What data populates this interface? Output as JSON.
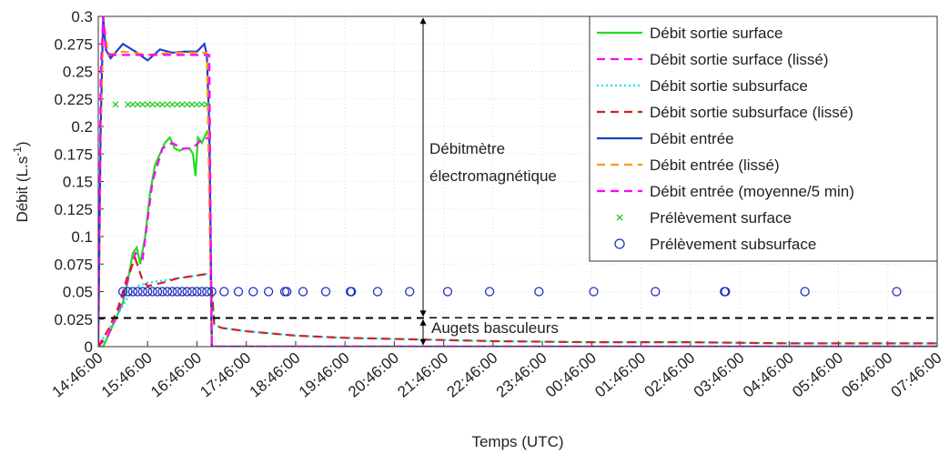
{
  "chart_data": {
    "type": "line",
    "xlabel": "Temps (UTC)",
    "ylabel": {
      "text": "Débit (L.s",
      "sup": "-1",
      "end": ")"
    },
    "xlim": [
      0,
      17
    ],
    "xticks": [
      {
        "value": 0,
        "label": "14:46:00"
      },
      {
        "value": 1,
        "label": "15:46:00"
      },
      {
        "value": 2,
        "label": "16:46:00"
      },
      {
        "value": 3,
        "label": "17:46:00"
      },
      {
        "value": 4,
        "label": "18:46:00"
      },
      {
        "value": 5,
        "label": "19:46:00"
      },
      {
        "value": 6,
        "label": "20:46:00"
      },
      {
        "value": 7,
        "label": "21:46:00"
      },
      {
        "value": 8,
        "label": "22:46:00"
      },
      {
        "value": 9,
        "label": "23:46:00"
      },
      {
        "value": 10,
        "label": "00:46:00"
      },
      {
        "value": 11,
        "label": "01:46:00"
      },
      {
        "value": 12,
        "label": "02:46:00"
      },
      {
        "value": 13,
        "label": "03:46:00"
      },
      {
        "value": 14,
        "label": "04:46:00"
      },
      {
        "value": 15,
        "label": "05:46:00"
      },
      {
        "value": 16,
        "label": "06:46:00"
      },
      {
        "value": 17,
        "label": "07:46:00"
      }
    ],
    "ylim": [
      0,
      0.3
    ],
    "yticks": [
      0,
      0.025,
      0.05,
      0.075,
      0.1,
      0.125,
      0.15,
      0.175,
      0.2,
      0.225,
      0.25,
      0.275,
      0.3
    ],
    "grid": true,
    "legend": "upper right",
    "threshold": 0.026,
    "annotations": {
      "upper": [
        "Débitmètre",
        "électromagnétique"
      ],
      "lower": "Augets basculeurs"
    },
    "series": [
      {
        "name": "Débit sortie surface",
        "color": "#22dd22",
        "style": "solid",
        "x": [
          0,
          0.1,
          0.2,
          0.3,
          0.4,
          0.5,
          0.6,
          0.7,
          0.78,
          0.85,
          0.95,
          1.05,
          1.15,
          1.25,
          1.35,
          1.45,
          1.55,
          1.65,
          1.75,
          1.85,
          1.92,
          1.97,
          2.02,
          2.1,
          2.2,
          2.25,
          2.3,
          17
        ],
        "values": [
          0,
          0,
          0.01,
          0.02,
          0.03,
          0.04,
          0.06,
          0.085,
          0.09,
          0.075,
          0.1,
          0.14,
          0.165,
          0.175,
          0.185,
          0.19,
          0.18,
          0.178,
          0.18,
          0.18,
          0.175,
          0.155,
          0.19,
          0.185,
          0.195,
          0.19,
          0,
          0
        ]
      },
      {
        "name": "Débit sortie surface (lissé)",
        "color": "#ff00ff",
        "style": "dashed",
        "x": [
          0,
          0.2,
          0.4,
          0.6,
          0.75,
          0.9,
          1.1,
          1.3,
          1.5,
          1.7,
          1.9,
          2.1,
          2.25,
          2.3,
          17
        ],
        "values": [
          0,
          0.01,
          0.03,
          0.06,
          0.085,
          0.08,
          0.15,
          0.18,
          0.185,
          0.18,
          0.18,
          0.188,
          0.19,
          0,
          0
        ]
      },
      {
        "name": "Débit sortie subsurface",
        "color": "#00e0ee",
        "style": "dotted",
        "x": [
          0,
          0.2,
          0.4,
          0.6,
          0.8,
          1.0,
          1.3,
          1.6,
          1.9,
          2.2,
          2.28,
          2.35,
          2.5,
          3,
          4,
          5,
          6,
          8,
          10,
          12,
          14,
          17
        ],
        "values": [
          0,
          0.015,
          0.03,
          0.045,
          0.055,
          0.058,
          0.06,
          0.062,
          0.064,
          0.066,
          0.065,
          0.02,
          0.017,
          0.014,
          0.01,
          0.008,
          0.007,
          0.005,
          0.004,
          0.004,
          0.003,
          0.003
        ]
      },
      {
        "name": "Débit sortie subsurface (lissé)",
        "color": "#d42020",
        "style": "dashed",
        "x": [
          0,
          0.2,
          0.4,
          0.6,
          0.75,
          0.9,
          1.0,
          1.3,
          1.6,
          1.9,
          2.2,
          2.28,
          2.35,
          2.5,
          3,
          4,
          5,
          6,
          8,
          10,
          12,
          14,
          17
        ],
        "values": [
          0,
          0.015,
          0.035,
          0.065,
          0.08,
          0.06,
          0.055,
          0.058,
          0.062,
          0.064,
          0.066,
          0.065,
          0.02,
          0.017,
          0.014,
          0.01,
          0.008,
          0.007,
          0.005,
          0.004,
          0.004,
          0.003,
          0.003
        ]
      },
      {
        "name": "Débit entrée",
        "color": "#1f3fcf",
        "style": "solid",
        "x": [
          0,
          0.05,
          0.1,
          0.15,
          0.25,
          0.5,
          0.75,
          1.0,
          1.25,
          1.5,
          1.75,
          2.0,
          2.15,
          2.2,
          2.25,
          2.3,
          17
        ],
        "values": [
          0,
          0.2,
          0.3,
          0.27,
          0.262,
          0.275,
          0.268,
          0.26,
          0.27,
          0.267,
          0.268,
          0.268,
          0.275,
          0.265,
          0.2,
          0,
          0
        ]
      },
      {
        "name": "Débit entrée (lissé)",
        "color": "#ff9900",
        "style": "dashed",
        "x": [
          0,
          0.05,
          0.1,
          0.2,
          0.5,
          1,
          1.5,
          2,
          2.2,
          2.3,
          17
        ],
        "values": [
          0,
          0.2,
          0.3,
          0.265,
          0.268,
          0.265,
          0.267,
          0.267,
          0.267,
          0,
          0
        ]
      },
      {
        "name": "Débit entrée (moyenne/5 min)",
        "color": "#ff00ff",
        "style": "dashed",
        "x": [
          0,
          0.05,
          0.1,
          0.15,
          0.25,
          2.25,
          2.3,
          17
        ],
        "values": [
          0,
          0.25,
          0.3,
          0.27,
          0.265,
          0.265,
          0,
          0
        ]
      },
      {
        "name": "Prélèvement surface",
        "color": "#22cc22",
        "style": "none",
        "marker": "x",
        "x": [
          0.35,
          0.6,
          0.7,
          0.8,
          0.9,
          1.0,
          1.1,
          1.2,
          1.3,
          1.4,
          1.5,
          1.6,
          1.7,
          1.8,
          1.9,
          2.0,
          2.1,
          2.2
        ],
        "values": [
          0.22,
          0.22,
          0.22,
          0.22,
          0.22,
          0.22,
          0.22,
          0.22,
          0.22,
          0.22,
          0.22,
          0.22,
          0.22,
          0.22,
          0.22,
          0.22,
          0.22,
          0.22
        ]
      },
      {
        "name": "Prélèvement subsurface",
        "color": "#2030c0",
        "style": "none",
        "marker": "o",
        "x": [
          0.5,
          0.6,
          0.7,
          0.8,
          0.9,
          1.0,
          1.1,
          1.2,
          1.3,
          1.4,
          1.5,
          1.6,
          1.7,
          1.8,
          1.9,
          2.0,
          2.1,
          2.2,
          2.3,
          2.55,
          2.84,
          3.14,
          3.45,
          3.78,
          3.82,
          4.15,
          4.61,
          5.11,
          5.13,
          5.66,
          6.31,
          7.08,
          7.93,
          8.93,
          10.04,
          11.29,
          12.69,
          12.71,
          14.32,
          16.18
        ],
        "values": [
          0.05,
          0.05,
          0.05,
          0.05,
          0.05,
          0.05,
          0.05,
          0.05,
          0.05,
          0.05,
          0.05,
          0.05,
          0.05,
          0.05,
          0.05,
          0.05,
          0.05,
          0.05,
          0.05,
          0.05,
          0.05,
          0.05,
          0.05,
          0.05,
          0.05,
          0.05,
          0.05,
          0.05,
          0.05,
          0.05,
          0.05,
          0.05,
          0.05,
          0.05,
          0.05,
          0.05,
          0.05,
          0.05,
          0.05,
          0.05
        ]
      }
    ]
  }
}
